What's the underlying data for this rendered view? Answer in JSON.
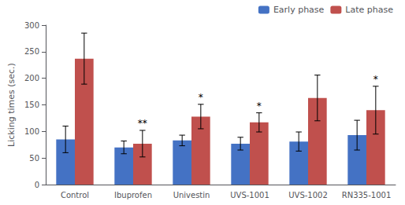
{
  "chart_data": {
    "type": "bar",
    "categories": [
      "Control",
      "Ibuprofen",
      "Univestin",
      "UVS-1001",
      "UVS-1002",
      "RN335-1001"
    ],
    "series": [
      {
        "name": "Early phase",
        "color": "#4472C4",
        "values": [
          85,
          70,
          83,
          77,
          81,
          93
        ],
        "errors": [
          25,
          12,
          10,
          12,
          18,
          28
        ]
      },
      {
        "name": "Late phase",
        "color": "#C0504D",
        "values": [
          237,
          77,
          128,
          117,
          163,
          140
        ],
        "errors": [
          48,
          25,
          23,
          18,
          43,
          45
        ]
      }
    ],
    "ylabel": "Licking times (sec.)",
    "ylim": [
      0,
      300
    ],
    "yticks": [
      0,
      50,
      100,
      150,
      200,
      250,
      300
    ],
    "grid": false,
    "legend": "upper right",
    "annotations": [
      {
        "category": "Ibuprofen",
        "series": "Late phase",
        "text": "**"
      },
      {
        "category": "Univestin",
        "series": "Late phase",
        "text": "*"
      },
      {
        "category": "UVS-1001",
        "series": "Late phase",
        "text": "*"
      },
      {
        "category": "RN335-1001",
        "series": "Late phase",
        "text": "*"
      }
    ]
  }
}
